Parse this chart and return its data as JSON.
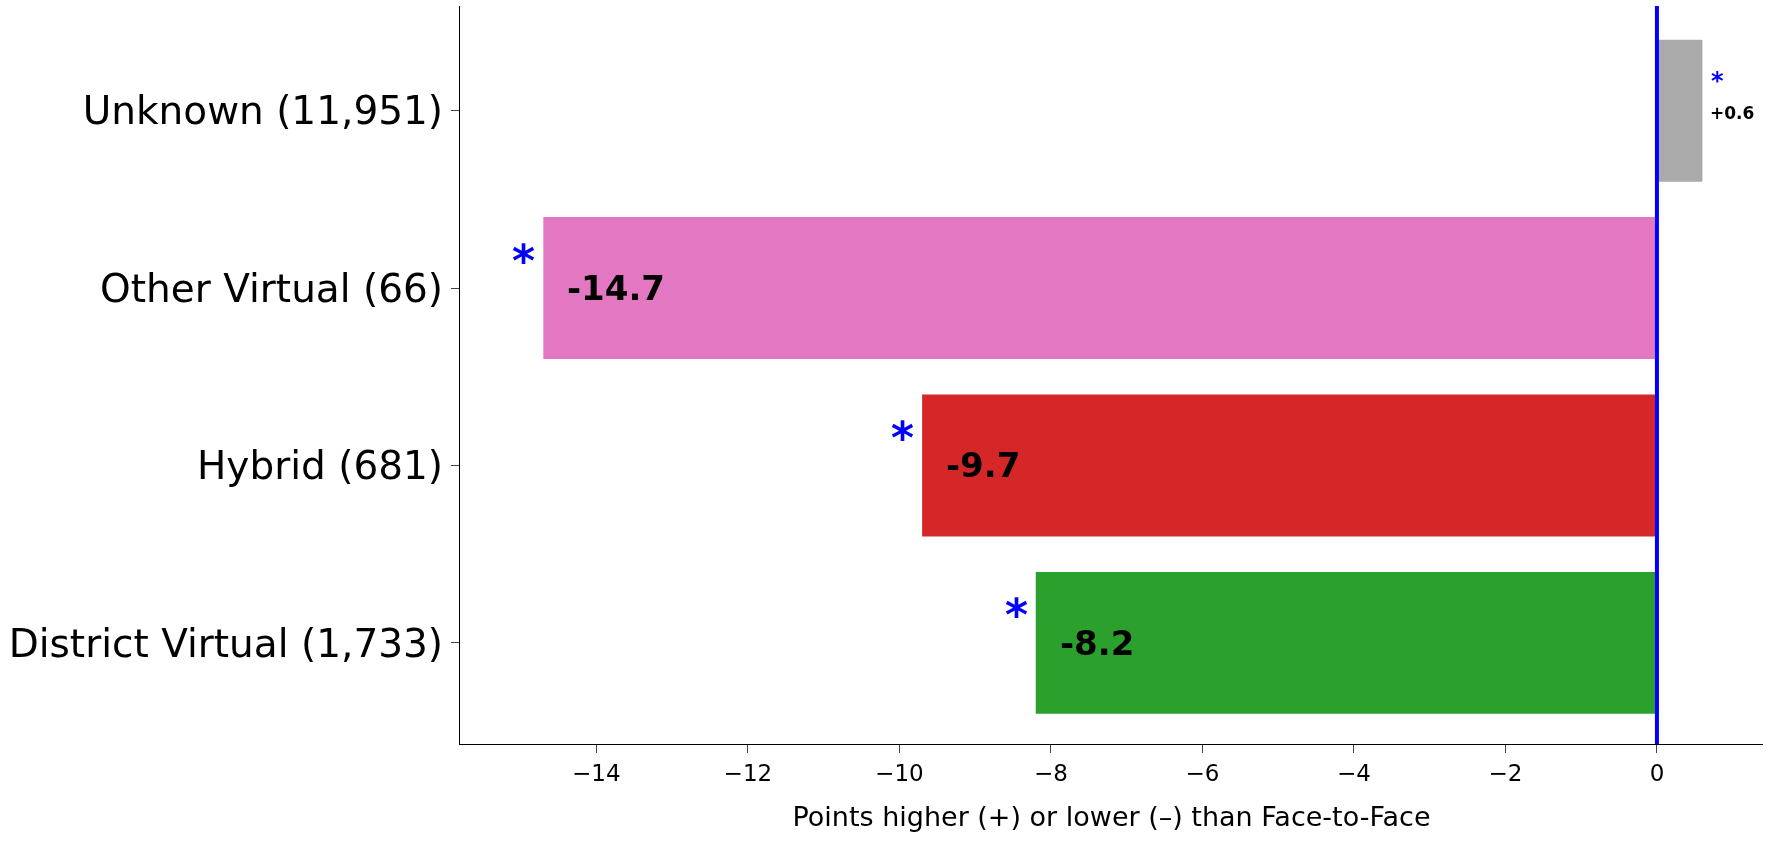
{
  "chart_data": {
    "type": "bar",
    "orientation": "horizontal",
    "xlabel": "Points higher (+) or lower (–) than Face-to-Face",
    "categories": [
      "Unknown (11,951)",
      "Other Virtual (66)",
      "Hybrid (681)",
      "District Virtual (1,733)"
    ],
    "values": [
      0.6,
      -14.7,
      -9.7,
      -8.2
    ],
    "colors": [
      "#aaaaaa",
      "#e377c2",
      "#d62728",
      "#2ca02c"
    ],
    "value_labels": [
      "+0.6",
      "-14.7",
      "-9.7",
      "-8.2"
    ],
    "xlim": [
      -15.8,
      1.4
    ],
    "xticks": [
      {
        "value": -14,
        "label": "−14"
      },
      {
        "value": -12,
        "label": "−12"
      },
      {
        "value": -10,
        "label": "−10"
      },
      {
        "value": -8,
        "label": "−8"
      },
      {
        "value": -6,
        "label": "−6"
      },
      {
        "value": -4,
        "label": "−4"
      },
      {
        "value": -2,
        "label": "−2"
      },
      {
        "value": 0,
        "label": "0"
      }
    ],
    "ref_lines": [
      {
        "axis": "x",
        "value": 0,
        "color": "#0000ff"
      }
    ],
    "annotations": [
      {
        "text": "*",
        "x": 0.6,
        "y": "Unknown (11,951)"
      },
      {
        "text": "*",
        "x": -14.7,
        "y": "Other Virtual (66)"
      },
      {
        "text": "*",
        "x": -9.7,
        "y": "Hybrid (681)"
      },
      {
        "text": "*",
        "x": -8.2,
        "y": "District Virtual (1,733)"
      }
    ],
    "grid": false
  }
}
